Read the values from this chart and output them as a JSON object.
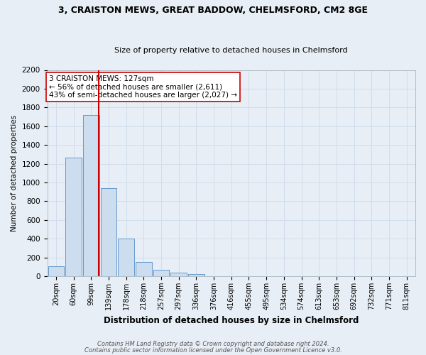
{
  "title1": "3, CRAISTON MEWS, GREAT BADDOW, CHELMSFORD, CM2 8GE",
  "title2": "Size of property relative to detached houses in Chelmsford",
  "xlabel": "Distribution of detached houses by size in Chelmsford",
  "ylabel": "Number of detached properties",
  "bar_labels": [
    "20sqm",
    "60sqm",
    "99sqm",
    "139sqm",
    "178sqm",
    "218sqm",
    "257sqm",
    "297sqm",
    "336sqm",
    "376sqm",
    "416sqm",
    "455sqm",
    "495sqm",
    "534sqm",
    "574sqm",
    "613sqm",
    "653sqm",
    "692sqm",
    "732sqm",
    "771sqm",
    "811sqm"
  ],
  "bar_values": [
    110,
    1265,
    1720,
    940,
    400,
    150,
    70,
    35,
    20,
    0,
    0,
    0,
    0,
    0,
    0,
    0,
    0,
    0,
    0,
    0,
    0
  ],
  "bar_color": "#ccddf0",
  "bar_edge_color": "#6699cc",
  "vline_color": "#cc0000",
  "vline_x_index": 2.43,
  "annotation_text": "3 CRAISTON MEWS: 127sqm\n← 56% of detached houses are smaller (2,611)\n43% of semi-detached houses are larger (2,027) →",
  "annotation_box_color": "#ffffff",
  "annotation_box_edge": "#cc0000",
  "ylim": [
    0,
    2200
  ],
  "yticks": [
    0,
    200,
    400,
    600,
    800,
    1000,
    1200,
    1400,
    1600,
    1800,
    2000,
    2200
  ],
  "footnote1": "Contains HM Land Registry data © Crown copyright and database right 2024.",
  "footnote2": "Contains public sector information licensed under the Open Government Licence v3.0.",
  "grid_color": "#d0dded",
  "background_color": "#e8eef5",
  "plot_bg_color": "#e8eef5",
  "title1_fontsize": 9,
  "title2_fontsize": 8,
  "xlabel_fontsize": 8.5,
  "ylabel_fontsize": 7.5,
  "xtick_fontsize": 7,
  "ytick_fontsize": 7.5,
  "annot_fontsize": 7.5,
  "footnote_fontsize": 6
}
